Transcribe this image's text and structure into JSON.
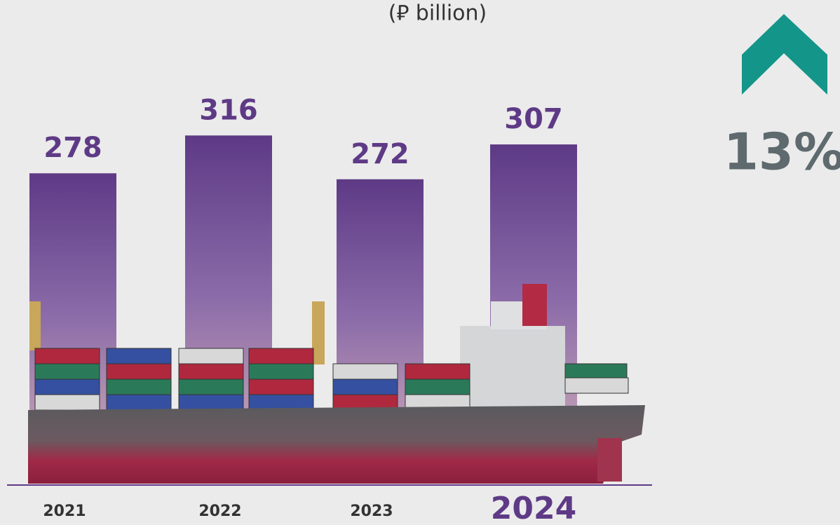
{
  "chart_data": {
    "type": "bar",
    "subtitle": "(⃁  billion)",
    "categories": [
      "2021",
      "2022",
      "2023",
      "2024"
    ],
    "values": [
      278,
      316,
      272,
      307
    ],
    "color": "#5e3a86",
    "annotation": "13%",
    "annotation_color": "#14958a"
  }
}
